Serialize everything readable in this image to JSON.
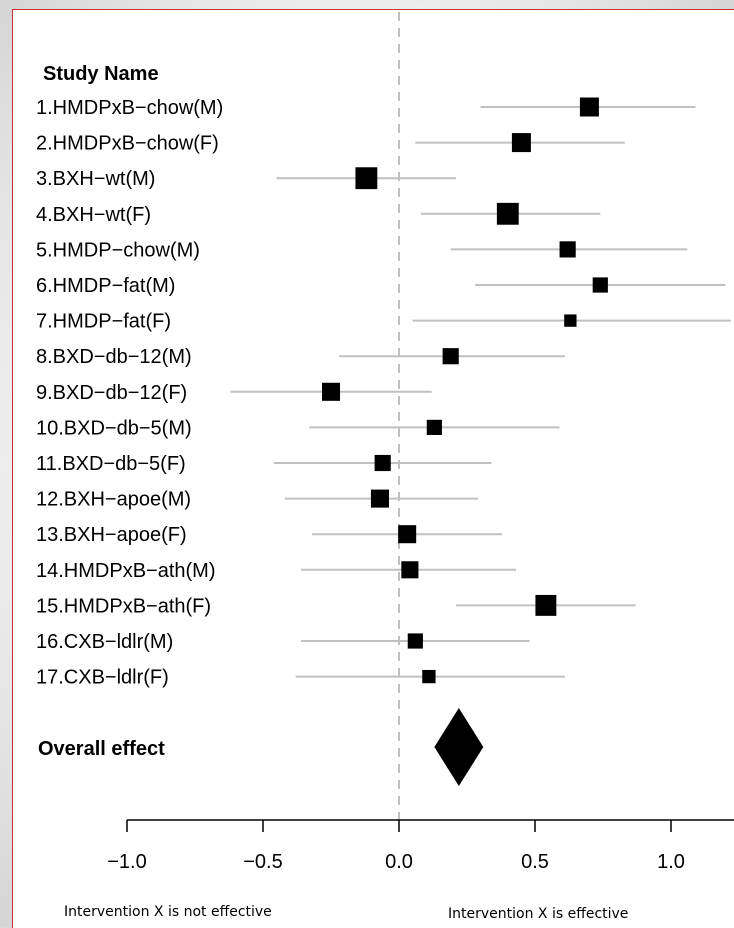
{
  "chart_data": {
    "type": "forest",
    "header": "Study Name",
    "studies": [
      {
        "label": "1.HMDPxB−chow(M)",
        "estimate": 0.7,
        "ci": [
          0.3,
          1.09
        ],
        "weight": 1.0
      },
      {
        "label": "2.HMDPxB−chow(F)",
        "estimate": 0.45,
        "ci": [
          0.06,
          0.83
        ],
        "weight": 1.0
      },
      {
        "label": "3.BXH−wt(M)",
        "estimate": -0.12,
        "ci": [
          -0.45,
          0.21
        ],
        "weight": 1.15
      },
      {
        "label": "4.BXH−wt(F)",
        "estimate": 0.4,
        "ci": [
          0.08,
          0.74
        ],
        "weight": 1.15
      },
      {
        "label": "5.HMDP−chow(M)",
        "estimate": 0.62,
        "ci": [
          0.19,
          1.06
        ],
        "weight": 0.85
      },
      {
        "label": "6.HMDP−fat(M)",
        "estimate": 0.74,
        "ci": [
          0.28,
          1.2
        ],
        "weight": 0.8
      },
      {
        "label": "7.HMDP−fat(F)",
        "estimate": 0.63,
        "ci": [
          0.05,
          1.22
        ],
        "weight": 0.65
      },
      {
        "label": "8.BXD−db−12(M)",
        "estimate": 0.19,
        "ci": [
          -0.22,
          0.61
        ],
        "weight": 0.85
      },
      {
        "label": "9.BXD−db−12(F)",
        "estimate": -0.25,
        "ci": [
          -0.62,
          0.12
        ],
        "weight": 0.95
      },
      {
        "label": "10.BXD−db−5(M)",
        "estimate": 0.13,
        "ci": [
          -0.33,
          0.59
        ],
        "weight": 0.8
      },
      {
        "label": "11.BXD−db−5(F)",
        "estimate": -0.06,
        "ci": [
          -0.46,
          0.34
        ],
        "weight": 0.85
      },
      {
        "label": "12.BXH−apoe(M)",
        "estimate": -0.07,
        "ci": [
          -0.42,
          0.29
        ],
        "weight": 0.95
      },
      {
        "label": "13.BXH−apoe(F)",
        "estimate": 0.03,
        "ci": [
          -0.32,
          0.38
        ],
        "weight": 0.95
      },
      {
        "label": "14.HMDPxB−ath(M)",
        "estimate": 0.04,
        "ci": [
          -0.36,
          0.43
        ],
        "weight": 0.9
      },
      {
        "label": "15.HMDPxB−ath(F)",
        "estimate": 0.54,
        "ci": [
          0.21,
          0.87
        ],
        "weight": 1.1
      },
      {
        "label": "16.CXB−ldlr(M)",
        "estimate": 0.06,
        "ci": [
          -0.36,
          0.48
        ],
        "weight": 0.8
      },
      {
        "label": "17.CXB−ldlr(F)",
        "estimate": 0.11,
        "ci": [
          -0.38,
          0.61
        ],
        "weight": 0.7
      }
    ],
    "overall": {
      "label": "Overall effect",
      "estimate": 0.22,
      "ci": [
        0.13,
        0.31
      ]
    },
    "xlim": [
      -1.0,
      1.25
    ],
    "xticks": [
      -1.0,
      -0.5,
      0.0,
      0.5,
      1.0
    ],
    "xtick_labels": [
      "−1.0",
      "−0.5",
      "0.0",
      "0.5",
      "1.0"
    ],
    "reference_line": 0.0,
    "footnotes": {
      "left": "Intervention X is not effective",
      "right": "Intervention X is effective"
    },
    "colors": {
      "ci_line": "#c0c0c0",
      "marker": "#000000",
      "reference_line": "#c0c0c0",
      "border": "#c83232"
    }
  }
}
